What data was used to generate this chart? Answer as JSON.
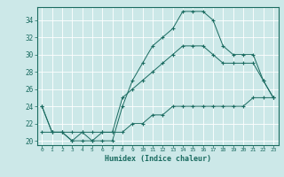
{
  "title": "",
  "xlabel": "Humidex (Indice chaleur)",
  "ylabel": "",
  "bg_color": "#cce8e8",
  "line_color": "#1a6b60",
  "grid_color": "#ffffff",
  "xlim": [
    -0.5,
    23.5
  ],
  "ylim": [
    19.5,
    35.5
  ],
  "yticks": [
    20,
    22,
    24,
    26,
    28,
    30,
    32,
    34
  ],
  "xticks": [
    0,
    1,
    2,
    3,
    4,
    5,
    6,
    7,
    8,
    9,
    10,
    11,
    12,
    13,
    14,
    15,
    16,
    17,
    18,
    19,
    20,
    21,
    22,
    23
  ],
  "line1_x": [
    0,
    1,
    2,
    3,
    4,
    5,
    6,
    7,
    8,
    9,
    10,
    11,
    12,
    13,
    14,
    15,
    16,
    17,
    18,
    19,
    20,
    21,
    22,
    23
  ],
  "line1_y": [
    24,
    21,
    21,
    20,
    21,
    20,
    20,
    20,
    24,
    27,
    29,
    31,
    32,
    33,
    35,
    35,
    35,
    34,
    31,
    30,
    30,
    30,
    27,
    25
  ],
  "line2_x": [
    0,
    1,
    2,
    3,
    4,
    5,
    6,
    7,
    8,
    9,
    10,
    11,
    12,
    13,
    14,
    15,
    16,
    17,
    18,
    19,
    20,
    21,
    22,
    23
  ],
  "line2_y": [
    24,
    21,
    21,
    20,
    20,
    20,
    21,
    21,
    25,
    26,
    27,
    28,
    29,
    30,
    31,
    31,
    31,
    30,
    29,
    29,
    29,
    29,
    27,
    25
  ],
  "line3_x": [
    0,
    1,
    2,
    3,
    4,
    5,
    6,
    7,
    8,
    9,
    10,
    11,
    12,
    13,
    14,
    15,
    16,
    17,
    18,
    19,
    20,
    21,
    22,
    23
  ],
  "line3_y": [
    21,
    21,
    21,
    21,
    21,
    21,
    21,
    21,
    21,
    22,
    22,
    23,
    23,
    24,
    24,
    24,
    24,
    24,
    24,
    24,
    24,
    25,
    25,
    25
  ]
}
